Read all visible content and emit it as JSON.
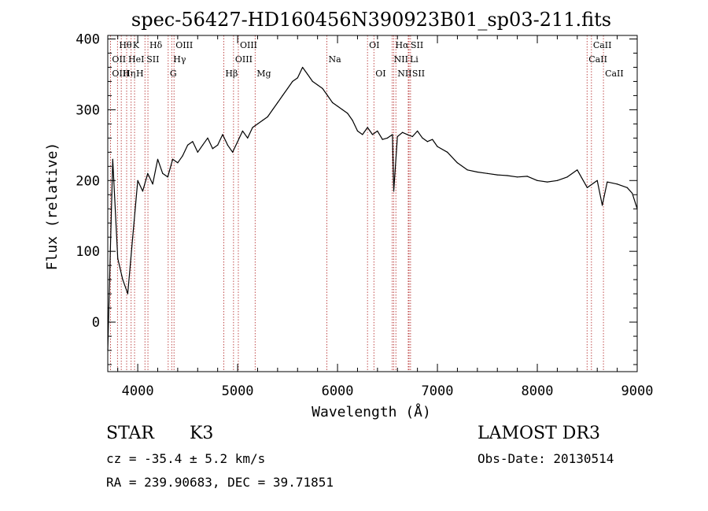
{
  "chart_data": {
    "type": "line",
    "title": "spec-56427-HD160456N390923B01_sp03-211.fits",
    "xlabel": "Wavelength (Å)",
    "ylabel": "Flux (relative)",
    "xlim": [
      3700,
      9000
    ],
    "ylim": [
      -70,
      405
    ],
    "x_ticks": [
      4000,
      5000,
      6000,
      7000,
      8000,
      9000
    ],
    "y_ticks": [
      0,
      100,
      200,
      300,
      400
    ],
    "series": [
      {
        "name": "flux",
        "x": [
          3700,
          3750,
          3800,
          3850,
          3900,
          3950,
          4000,
          4050,
          4100,
          4150,
          4200,
          4250,
          4300,
          4350,
          4400,
          4450,
          4500,
          4550,
          4600,
          4650,
          4700,
          4750,
          4800,
          4850,
          4900,
          4950,
          5000,
          5050,
          5100,
          5150,
          5200,
          5250,
          5300,
          5350,
          5400,
          5450,
          5500,
          5550,
          5600,
          5650,
          5700,
          5750,
          5800,
          5850,
          5900,
          5950,
          6000,
          6050,
          6100,
          6150,
          6200,
          6250,
          6300,
          6350,
          6400,
          6450,
          6500,
          6550,
          6563,
          6600,
          6650,
          6700,
          6750,
          6800,
          6850,
          6900,
          6950,
          7000,
          7100,
          7200,
          7300,
          7400,
          7500,
          7600,
          7700,
          7800,
          7900,
          8000,
          8100,
          8200,
          8300,
          8400,
          8500,
          8600,
          8650,
          8700,
          8800,
          8900,
          8950,
          9000
        ],
        "y": [
          -40,
          230,
          90,
          60,
          40,
          120,
          200,
          185,
          210,
          195,
          230,
          210,
          205,
          230,
          225,
          235,
          250,
          255,
          240,
          250,
          260,
          245,
          250,
          265,
          250,
          240,
          255,
          270,
          260,
          275,
          280,
          285,
          290,
          300,
          310,
          320,
          330,
          340,
          345,
          360,
          350,
          340,
          335,
          330,
          320,
          310,
          305,
          300,
          295,
          285,
          270,
          265,
          275,
          265,
          270,
          258,
          260,
          265,
          185,
          262,
          268,
          265,
          262,
          270,
          260,
          255,
          258,
          248,
          240,
          225,
          215,
          212,
          210,
          208,
          207,
          205,
          206,
          200,
          198,
          200,
          205,
          215,
          190,
          200,
          165,
          198,
          195,
          190,
          182,
          160
        ]
      }
    ],
    "line_labels": {
      "top": [
        {
          "label": "Hθ",
          "wl": 3797
        },
        {
          "label": "K",
          "wl": 3934
        },
        {
          "label": "Hδ",
          "wl": 4102
        },
        {
          "label": "OIII",
          "wl": 4363
        },
        {
          "label": "OIII",
          "wl": 5007
        },
        {
          "label": "OI",
          "wl": 6300
        },
        {
          "label": "Hα",
          "wl": 6563
        },
        {
          "label": "SII",
          "wl": 6716
        },
        {
          "label": "CaII",
          "wl": 8542
        }
      ],
      "middle": [
        {
          "label": "OII",
          "wl": 3727
        },
        {
          "label": "HeI",
          "wl": 3889
        },
        {
          "label": "SII",
          "wl": 4072
        },
        {
          "label": "Hγ",
          "wl": 4340
        },
        {
          "label": "OIII",
          "wl": 4959
        },
        {
          "label": "Na",
          "wl": 5893
        },
        {
          "label": "NII",
          "wl": 6548
        },
        {
          "label": "Li",
          "wl": 6708
        },
        {
          "label": "CaII",
          "wl": 8498
        }
      ],
      "bottom": [
        {
          "label": "OIII",
          "wl": 3727
        },
        {
          "label": "Hη",
          "wl": 3835
        },
        {
          "label": "H",
          "wl": 3968
        },
        {
          "label": "G",
          "wl": 4305
        },
        {
          "label": "Hβ",
          "wl": 4861
        },
        {
          "label": "Mg",
          "wl": 5175
        },
        {
          "label": "OI",
          "wl": 6364
        },
        {
          "label": "NII",
          "wl": 6584
        },
        {
          "label": "SII",
          "wl": 6731
        },
        {
          "label": "CaII",
          "wl": 8662
        }
      ]
    }
  },
  "info": {
    "object_class": "STAR",
    "subclass": "K3",
    "cz_line": "cz = -35.4 ± 5.2 km/s",
    "coords_line": "RA = 239.90683, DEC =  39.71851",
    "survey": "LAMOST DR3",
    "obs_date_line": "Obs-Date: 20130514"
  },
  "colors": {
    "spectrum": "#000000",
    "line_markers": "#b02020"
  }
}
